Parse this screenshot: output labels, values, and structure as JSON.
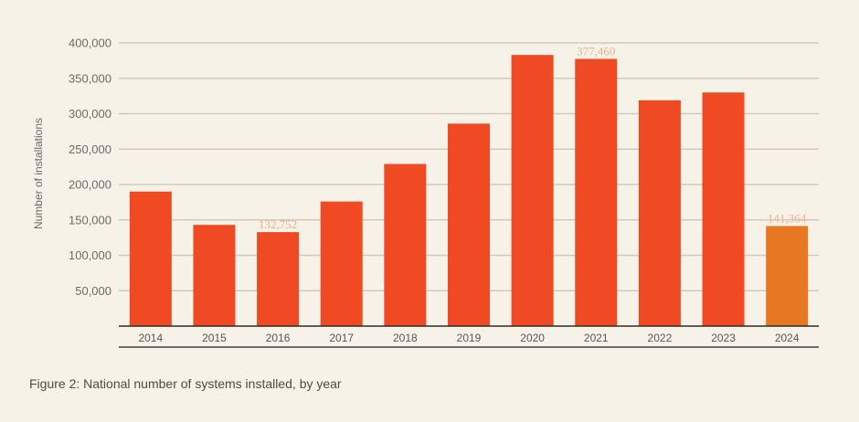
{
  "chart_data": {
    "type": "bar",
    "title": "",
    "xlabel": "",
    "ylabel": "Number of installations",
    "ylim": [
      0,
      400000
    ],
    "yticks": [
      50000,
      100000,
      150000,
      200000,
      250000,
      300000,
      350000,
      400000
    ],
    "ytick_labels": [
      "50,000",
      "100,000",
      "150,000",
      "200,000",
      "250,000",
      "300,000",
      "350,000",
      "400,000"
    ],
    "grid": true,
    "categories": [
      "2014",
      "2015",
      "2016",
      "2017",
      "2018",
      "2019",
      "2020",
      "2021",
      "2022",
      "2023",
      "2024"
    ],
    "values": [
      190000,
      143000,
      132752,
      176000,
      229000,
      286000,
      383000,
      377460,
      319000,
      330000,
      141364
    ],
    "data_labels": {
      "2016": "132,752",
      "2021": "377,460",
      "2024": "141,364"
    },
    "bar_colors": [
      "#ef4a23",
      "#ef4a23",
      "#ef4a23",
      "#ef4a23",
      "#ef4a23",
      "#ef4a23",
      "#ef4a23",
      "#ef4a23",
      "#ef4a23",
      "#ef4a23",
      "#e87722"
    ],
    "colors": {
      "primary_bar": "#ef4a23",
      "highlight_bar": "#e87722",
      "data_label": "#eeb08c",
      "grid": "#cfc9c0"
    }
  },
  "caption": "Figure 2: National number of systems installed, by year"
}
